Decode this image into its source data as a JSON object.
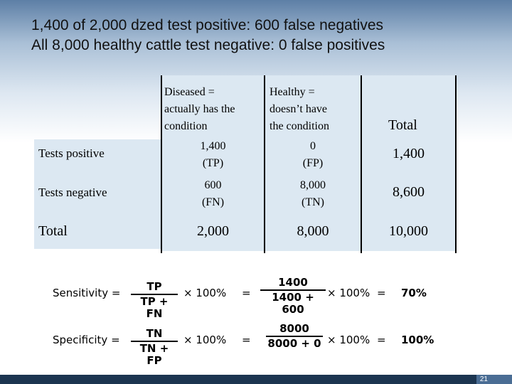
{
  "title": {
    "line1": "1,400 of 2,000 dzed test positive: 600 false negatives",
    "line2": "All 8,000 healthy cattle test negative: 0 false positives"
  },
  "table": {
    "col_headers": {
      "diseased": [
        "Diseased =",
        "actually has the",
        "condition"
      ],
      "healthy": [
        "Healthy =",
        "doesn’t have",
        "the condition"
      ],
      "total": "Total"
    },
    "rows": {
      "positive": {
        "label": "Tests positive",
        "diseased": [
          "1,400",
          "(TP)"
        ],
        "healthy": [
          "0",
          "(FP)"
        ],
        "total": "1,400"
      },
      "negative": {
        "label": "Tests negative",
        "diseased": [
          "600",
          "(FN)"
        ],
        "healthy": [
          "8,000",
          "(TN)"
        ],
        "total": "8,600"
      },
      "total": {
        "label": "Total",
        "diseased": "2,000",
        "healthy": "8,000",
        "total": "10,000"
      }
    }
  },
  "sensitivity": {
    "label": "Sensitivity =",
    "numerator": "TP",
    "denominator": "TP + FN",
    "times": "× 100%",
    "equals": "=",
    "calc_numerator": "1400",
    "calc_denominator": "1400 + 600",
    "calc_times": "× 100%",
    "calc_equals": "=",
    "result": "70%"
  },
  "specificity": {
    "label": "Specificity =",
    "numerator": "TN",
    "denominator": "TN + FP",
    "times": "× 100%",
    "equals": "=",
    "calc_numerator": "8000",
    "calc_denominator": "8000 + 0",
    "calc_times": "× 100%",
    "calc_equals": "=",
    "result": "100%"
  },
  "page_number": "21",
  "colors": {
    "header_band": "#5d7fa6",
    "table_fill": "#dce8f2",
    "footer": "#1c3550"
  }
}
